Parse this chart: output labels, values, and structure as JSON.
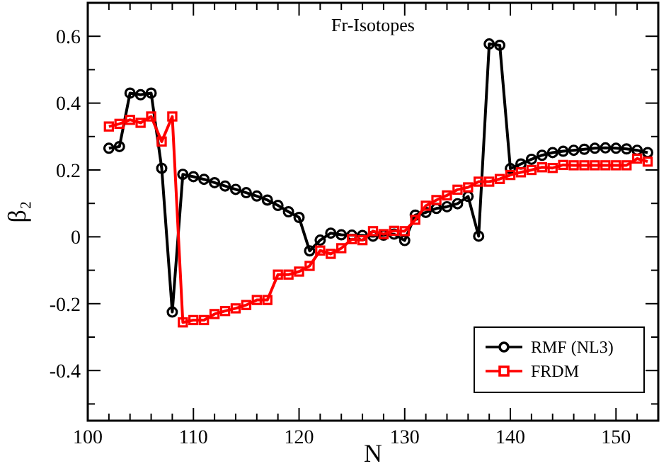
{
  "chart_data": {
    "type": "line",
    "title": "Fr-Isotopes",
    "xlabel": "N",
    "ylabel": "β₂",
    "x": [
      102,
      103,
      104,
      105,
      106,
      107,
      108,
      109,
      110,
      111,
      112,
      113,
      114,
      115,
      116,
      117,
      118,
      119,
      120,
      121,
      122,
      123,
      124,
      125,
      126,
      127,
      128,
      129,
      130,
      131,
      132,
      133,
      134,
      135,
      136,
      137,
      138,
      139,
      140,
      141,
      142,
      143,
      144,
      145,
      146,
      147,
      148,
      149,
      150,
      151,
      152,
      153
    ],
    "series": [
      {
        "name": "RMF (NL3)",
        "color": "#000000",
        "marker": "circle",
        "values": [
          0.265,
          0.27,
          0.43,
          0.425,
          0.43,
          0.205,
          -0.225,
          0.187,
          0.18,
          0.172,
          0.162,
          0.152,
          0.142,
          0.132,
          0.122,
          0.11,
          0.094,
          0.075,
          0.058,
          -0.042,
          -0.01,
          0.011,
          0.006,
          0.005,
          0.004,
          0.002,
          0.005,
          0.008,
          -0.011,
          0.065,
          0.073,
          0.085,
          0.09,
          0.099,
          0.121,
          0.002,
          0.577,
          0.573,
          0.204,
          0.218,
          0.232,
          0.244,
          0.252,
          0.256,
          0.259,
          0.262,
          0.265,
          0.266,
          0.265,
          0.263,
          0.259,
          0.252
        ]
      },
      {
        "name": "FRDM",
        "color": "#ff0000",
        "marker": "square",
        "values": [
          0.33,
          0.338,
          0.35,
          0.341,
          0.36,
          0.285,
          0.36,
          -0.256,
          -0.249,
          -0.249,
          -0.231,
          -0.222,
          -0.214,
          -0.204,
          -0.189,
          -0.189,
          -0.113,
          -0.113,
          -0.104,
          -0.087,
          -0.041,
          -0.051,
          -0.034,
          -0.007,
          -0.01,
          0.017,
          0.008,
          0.018,
          0.017,
          0.051,
          0.093,
          0.11,
          0.124,
          0.141,
          0.148,
          0.165,
          0.165,
          0.173,
          0.185,
          0.193,
          0.2,
          0.208,
          0.206,
          0.215,
          0.214,
          0.214,
          0.214,
          0.214,
          0.214,
          0.214,
          0.234,
          0.225
        ]
      }
    ],
    "xlim": [
      100,
      154
    ],
    "xticks": [
      100,
      {
        "value": 102,
        "label": null
      },
      {
        "value": 104,
        "label": null
      },
      {
        "value": 106,
        "label": null
      },
      {
        "value": 108,
        "label": null
      },
      110,
      {
        "value": 112,
        "label": null
      },
      {
        "value": 114,
        "label": null
      },
      {
        "value": 116,
        "label": null
      },
      {
        "value": 118,
        "label": null
      },
      120,
      {
        "value": 122,
        "label": null
      },
      {
        "value": 124,
        "label": null
      },
      {
        "value": 126,
        "label": null
      },
      {
        "value": 128,
        "label": null
      },
      130,
      {
        "value": 132,
        "label": null
      },
      {
        "value": 134,
        "label": null
      },
      {
        "value": 136,
        "label": null
      },
      {
        "value": 138,
        "label": null
      },
      140,
      {
        "value": 142,
        "label": null
      },
      {
        "value": 144,
        "label": null
      },
      {
        "value": 146,
        "label": null
      },
      {
        "value": 148,
        "label": null
      },
      150,
      {
        "value": 152,
        "label": null
      }
    ],
    "ylim": [
      -0.55,
      0.7
    ],
    "yticks": [
      {
        "value": -0.5,
        "label": null
      },
      -0.4,
      {
        "value": -0.3,
        "label": null
      },
      -0.2,
      {
        "value": -0.1,
        "label": null
      },
      0,
      {
        "value": 0.1,
        "label": null
      },
      0.2,
      {
        "value": 0.3,
        "label": null
      },
      0.4,
      {
        "value": 0.5,
        "label": null
      },
      0.6
    ],
    "grid": false,
    "legend": "bottom right",
    "line_style": "solid"
  }
}
